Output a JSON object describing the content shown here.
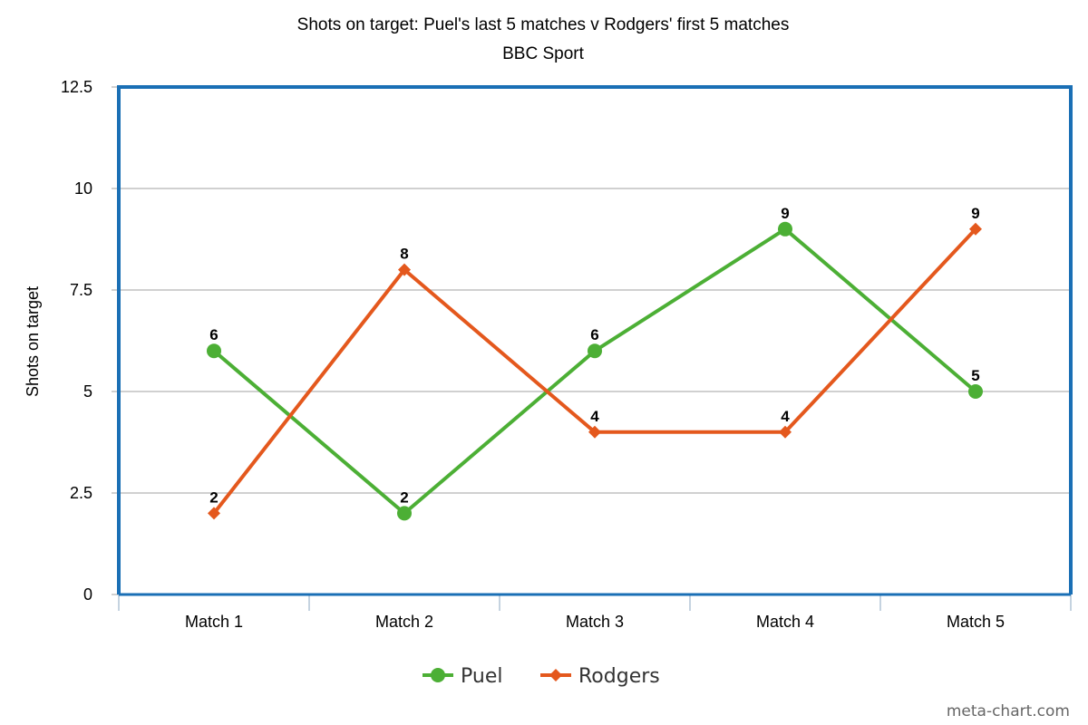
{
  "chart_data": {
    "type": "line",
    "title": "Shots on target: Puel's last 5 matches v Rodgers' first 5 matches",
    "subtitle": "BBC Sport",
    "xlabel": "",
    "ylabel": "Shots on target",
    "categories": [
      "Match 1",
      "Match 2",
      "Match 3",
      "Match 4",
      "Match 5"
    ],
    "ylim": [
      0,
      12.5
    ],
    "yticks": [
      0,
      2.5,
      5,
      7.5,
      10,
      12.5
    ],
    "ytick_labels": [
      "0",
      "2.5",
      "5",
      "7.5",
      "10",
      "12.5"
    ],
    "grid": true,
    "legend_position": "bottom",
    "series": [
      {
        "name": "Puel",
        "values": [
          6,
          2,
          6,
          9,
          5
        ],
        "color": "#4caf35",
        "marker": "circle"
      },
      {
        "name": "Rodgers",
        "values": [
          2,
          8,
          4,
          4,
          9
        ],
        "color": "#e4581d",
        "marker": "diamond"
      }
    ],
    "data_labels": true
  },
  "colors": {
    "plot_border": "#1a6fb5",
    "gridline": "#c0c0c0",
    "axis": "#c5d3e0"
  },
  "watermark": "meta-chart.com"
}
